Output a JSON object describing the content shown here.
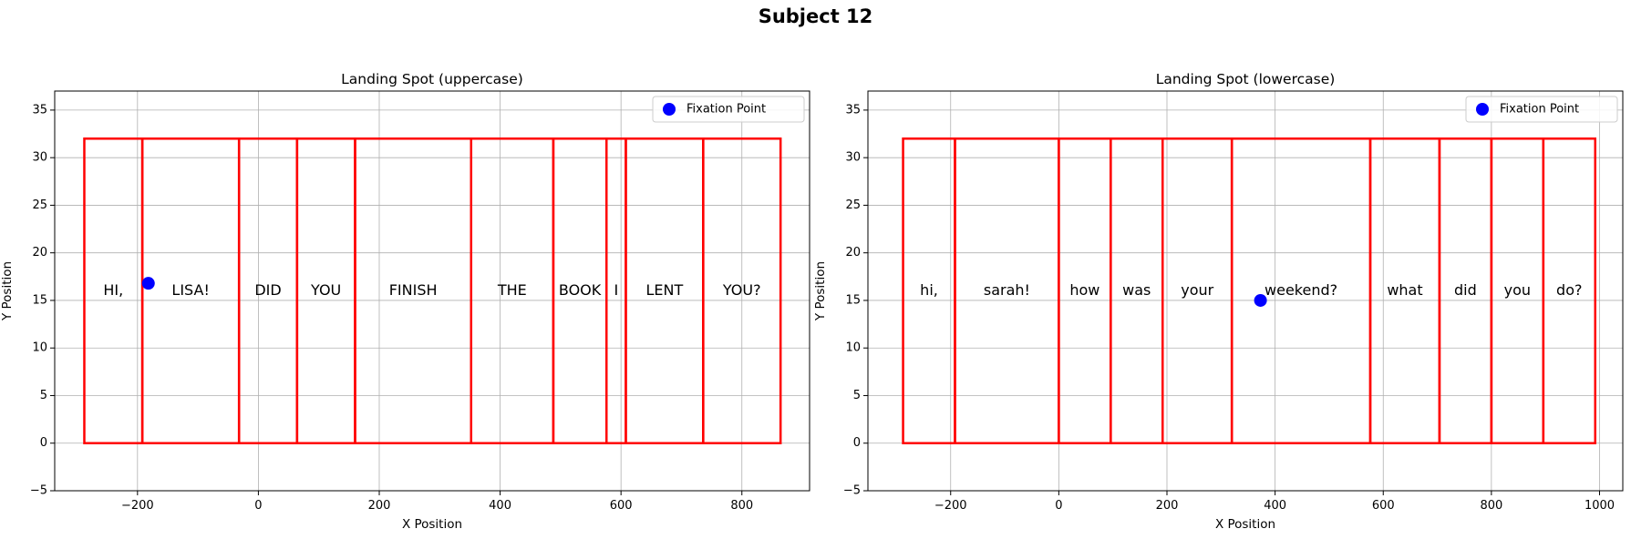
{
  "figure": {
    "suptitle": "Subject 12"
  },
  "colors": {
    "box": "#ff0000",
    "fixation": "#0000ff",
    "grid": "#b0b0b0"
  },
  "chart_data": [
    {
      "type": "scatter",
      "title": "Landing Spot (uppercase)",
      "xlabel": "X Position",
      "ylabel": "Y Position",
      "xlim": [
        -337,
        912
      ],
      "ylim": [
        -5,
        37
      ],
      "xticks": [
        -200,
        0,
        200,
        400,
        600,
        800
      ],
      "yticks": [
        -5,
        0,
        5,
        10,
        15,
        20,
        25,
        30,
        35
      ],
      "grid": true,
      "legend": {
        "placement": "top-right",
        "entries": [
          "Fixation Point"
        ]
      },
      "boxes": [
        {
          "word": "HI,",
          "x0": -288,
          "x1": -192,
          "y0": 0,
          "y1": 32
        },
        {
          "word": "LISA!",
          "x0": -192,
          "x1": -32,
          "y0": 0,
          "y1": 32
        },
        {
          "word": "DID",
          "x0": -32,
          "x1": 64,
          "y0": 0,
          "y1": 32
        },
        {
          "word": "YOU",
          "x0": 64,
          "x1": 160,
          "y0": 0,
          "y1": 32
        },
        {
          "word": "FINISH",
          "x0": 160,
          "x1": 352,
          "y0": 0,
          "y1": 32
        },
        {
          "word": "THE",
          "x0": 352,
          "x1": 488,
          "y0": 0,
          "y1": 32
        },
        {
          "word": "BOOK",
          "x0": 488,
          "x1": 576,
          "y0": 0,
          "y1": 32
        },
        {
          "word": "I",
          "x0": 576,
          "x1": 608,
          "y0": 0,
          "y1": 32
        },
        {
          "word": "LENT",
          "x0": 608,
          "x1": 736,
          "y0": 0,
          "y1": 32
        },
        {
          "word": "YOU?",
          "x0": 736,
          "x1": 864,
          "y0": 0,
          "y1": 32
        }
      ],
      "word_label_y": 16,
      "fixation": {
        "name": "Fixation Point",
        "x": -182,
        "y": 16.8
      }
    },
    {
      "type": "scatter",
      "title": "Landing Spot (lowercase)",
      "xlabel": "X Position",
      "ylabel": "Y Position",
      "xlim": [
        -353,
        1043
      ],
      "ylim": [
        -5,
        37
      ],
      "xticks": [
        -200,
        0,
        200,
        400,
        600,
        800,
        1000
      ],
      "yticks": [
        -5,
        0,
        5,
        10,
        15,
        20,
        25,
        30,
        35
      ],
      "grid": true,
      "legend": {
        "placement": "top-right",
        "entries": [
          "Fixation Point"
        ]
      },
      "boxes": [
        {
          "word": "hi,",
          "x0": -288,
          "x1": -192,
          "y0": 0,
          "y1": 32
        },
        {
          "word": "sarah!",
          "x0": -192,
          "x1": 0,
          "y0": 0,
          "y1": 32
        },
        {
          "word": "how",
          "x0": 0,
          "x1": 96,
          "y0": 0,
          "y1": 32
        },
        {
          "word": "was",
          "x0": 96,
          "x1": 192,
          "y0": 0,
          "y1": 32
        },
        {
          "word": "your",
          "x0": 192,
          "x1": 320,
          "y0": 0,
          "y1": 32
        },
        {
          "word": "weekend?",
          "x0": 320,
          "x1": 576,
          "y0": 0,
          "y1": 32
        },
        {
          "word": "what",
          "x0": 576,
          "x1": 704,
          "y0": 0,
          "y1": 32
        },
        {
          "word": "did",
          "x0": 704,
          "x1": 800,
          "y0": 0,
          "y1": 32
        },
        {
          "word": "you",
          "x0": 800,
          "x1": 896,
          "y0": 0,
          "y1": 32
        },
        {
          "word": "do?",
          "x0": 896,
          "x1": 992,
          "y0": 0,
          "y1": 32
        }
      ],
      "word_label_y": 16,
      "fixation": {
        "name": "Fixation Point",
        "x": 373,
        "y": 15
      }
    }
  ]
}
